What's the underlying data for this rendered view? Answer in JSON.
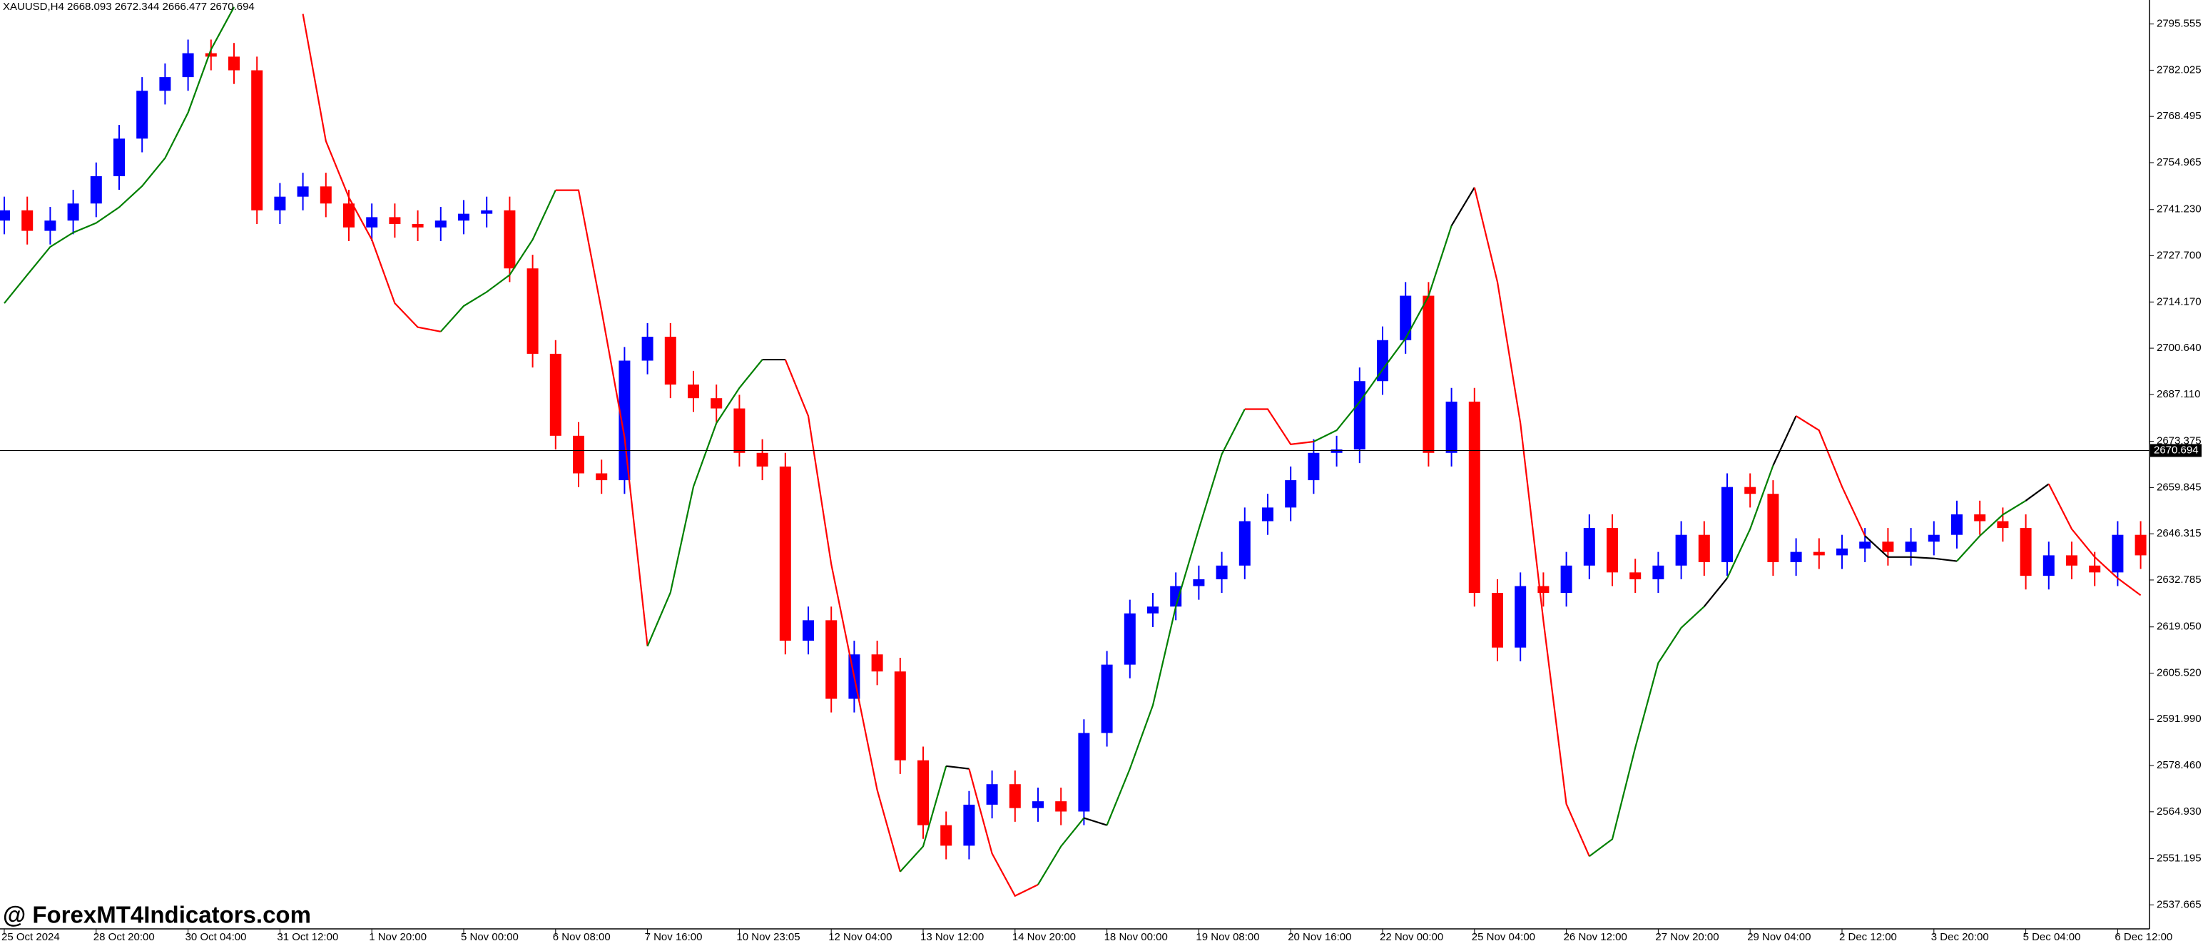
{
  "chart_data": {
    "type": "candlestick",
    "header": "XAUUSD,H4  2668.093 2672.344 2666.477 2670.694",
    "watermark": "@ ForexMT4Indicators.com",
    "up_color": "#0000ff",
    "down_color": "#ff0000",
    "categories": [
      "25 Oct 2024",
      null,
      null,
      null,
      "28 Oct 20:00",
      null,
      null,
      null,
      "30 Oct 04:00",
      null,
      null,
      null,
      "31 Oct 12:00",
      null,
      null,
      null,
      "1 Nov 20:00",
      null,
      null,
      null,
      "5 Nov 00:00",
      null,
      null,
      null,
      "6 Nov 08:00",
      null,
      null,
      null,
      "7 Nov 16:00",
      null,
      null,
      null,
      "10 Nov 23:05",
      null,
      null,
      null,
      "12 Nov 04:00",
      null,
      null,
      null,
      "13 Nov 12:00",
      null,
      null,
      null,
      "14 Nov 20:00",
      null,
      null,
      null,
      "18 Nov 00:00",
      null,
      null,
      null,
      "19 Nov 08:00",
      null,
      null,
      null,
      "20 Nov 16:00",
      null,
      null,
      null,
      "22 Nov 00:00",
      null,
      null,
      null,
      "25 Nov 04:00",
      null,
      null,
      null,
      "26 Nov 12:00",
      null,
      null,
      null,
      "27 Nov 20:00",
      null,
      null,
      null,
      "29 Nov 04:00",
      null,
      null,
      null,
      "2 Dec 12:00",
      null,
      null,
      null,
      "3 Dec 20:00",
      null,
      null,
      null,
      "5 Dec 04:00",
      null,
      null,
      null,
      "6 Dec 12:00",
      null
    ],
    "open": [
      2738,
      2741,
      2735,
      2738,
      2743,
      2751,
      2762,
      2776,
      2780,
      2787,
      2786,
      2782,
      2741,
      2745,
      2748,
      2743,
      2736,
      2739,
      2737,
      2736,
      2738,
      2740,
      2741,
      2724,
      2699,
      2675,
      2664,
      2662,
      2697,
      2704,
      2690,
      2686,
      2683,
      2670,
      2666,
      2615,
      2621,
      2598,
      2611,
      2606,
      2580,
      2561,
      2555,
      2567,
      2573,
      2566,
      2568,
      2565,
      2588,
      2608,
      2623,
      2625,
      2631,
      2633,
      2637,
      2650,
      2654,
      2662,
      2670,
      2671,
      2691,
      2703,
      2716,
      2670,
      2685,
      2629,
      2613,
      2631,
      2629,
      2637,
      2648,
      2635,
      2633,
      2637,
      2646,
      2638,
      2660,
      2658,
      2638,
      2641,
      2640,
      2642,
      2644,
      2641,
      2644,
      2646,
      2652,
      2650,
      2648,
      2634,
      2640,
      2637,
      2635,
      2646
    ],
    "high": [
      2745,
      2745,
      2742,
      2747,
      2755,
      2766,
      2780,
      2784,
      2791,
      2791,
      2790,
      2786,
      2749,
      2752,
      2752,
      2747,
      2743,
      2743,
      2741,
      2742,
      2744,
      2745,
      2745,
      2728,
      2703,
      2679,
      2668,
      2701,
      2708,
      2708,
      2694,
      2690,
      2687,
      2674,
      2670,
      2625,
      2625,
      2615,
      2615,
      2610,
      2584,
      2565,
      2571,
      2577,
      2577,
      2572,
      2572,
      2592,
      2612,
      2627,
      2629,
      2635,
      2637,
      2641,
      2654,
      2658,
      2666,
      2674,
      2675,
      2695,
      2707,
      2720,
      2720,
      2689,
      2689,
      2633,
      2635,
      2635,
      2641,
      2652,
      2652,
      2639,
      2641,
      2650,
      2650,
      2664,
      2664,
      2662,
      2645,
      2645,
      2646,
      2648,
      2648,
      2648,
      2650,
      2656,
      2656,
      2654,
      2652,
      2644,
      2644,
      2641,
      2650,
      2650
    ],
    "low": [
      2734,
      2731,
      2731,
      2734,
      2739,
      2747,
      2758,
      2772,
      2776,
      2782,
      2778,
      2737,
      2737,
      2741,
      2739,
      2732,
      2732,
      2733,
      2732,
      2732,
      2734,
      2736,
      2720,
      2695,
      2671,
      2660,
      2658,
      2658,
      2693,
      2686,
      2682,
      2679,
      2666,
      2662,
      2611,
      2611,
      2594,
      2594,
      2602,
      2576,
      2557,
      2551,
      2551,
      2563,
      2562,
      2562,
      2561,
      2561,
      2584,
      2604,
      2619,
      2621,
      2627,
      2629,
      2633,
      2646,
      2650,
      2658,
      2666,
      2667,
      2687,
      2699,
      2666,
      2666,
      2625,
      2609,
      2609,
      2625,
      2625,
      2633,
      2631,
      2629,
      2629,
      2633,
      2634,
      2634,
      2654,
      2634,
      2634,
      2636,
      2636,
      2638,
      2637,
      2637,
      2640,
      2642,
      2646,
      2644,
      2630,
      2630,
      2633,
      2631,
      2631,
      2636
    ],
    "close": [
      2741,
      2735,
      2738,
      2743,
      2751,
      2762,
      2776,
      2780,
      2787,
      2786,
      2782,
      2741,
      2745,
      2748,
      2743,
      2736,
      2739,
      2737,
      2736,
      2738,
      2740,
      2741,
      2724,
      2699,
      2675,
      2664,
      2662,
      2697,
      2704,
      2690,
      2686,
      2683,
      2670,
      2666,
      2615,
      2621,
      2598,
      2611,
      2606,
      2580,
      2561,
      2555,
      2567,
      2573,
      2566,
      2568,
      2565,
      2588,
      2608,
      2623,
      2625,
      2631,
      2633,
      2637,
      2650,
      2654,
      2662,
      2670,
      2671,
      2691,
      2703,
      2716,
      2670,
      2685,
      2629,
      2613,
      2631,
      2629,
      2637,
      2648,
      2635,
      2633,
      2637,
      2646,
      2638,
      2660,
      2658,
      2638,
      2641,
      2640,
      2642,
      2644,
      2641,
      2644,
      2646,
      2652,
      2650,
      2648,
      2634,
      2640,
      2637,
      2635,
      2646,
      2640
    ],
    "indicator": {
      "values": [
        2713.8,
        2722.1,
        2730.3,
        2734.5,
        2737.3,
        2741.9,
        2748.1,
        2756.3,
        2769.6,
        2788.1,
        2800.5,
        null,
        null,
        2798.5,
        2761.3,
        2744.8,
        2732.4,
        2713.8,
        2706.8,
        2705.5,
        2713,
        2717.1,
        2722.1,
        2732.4,
        2746.9,
        2746.9,
        2711.7,
        2674.6,
        2613.4,
        2629.1,
        2660.1,
        2678.7,
        2689,
        2697.3,
        2697.3,
        2680.8,
        2637.4,
        2604.4,
        2571.3,
        2547.4,
        2554.8,
        2578.3,
        2577.5,
        2552.7,
        2540.3,
        2543.6,
        2554.8,
        2563.1,
        2561,
        2577.5,
        2596.1,
        2625,
        2647.7,
        2669.6,
        2682.8,
        2682.8,
        2672.5,
        2673.3,
        2676.6,
        2684.9,
        2694.4,
        2703.5,
        2715.9,
        2736.5,
        2747.7,
        2720,
        2678.7,
        2620.9,
        2567.2,
        2551.9,
        2556.9,
        2583.7,
        2608.5,
        2618.8,
        2625,
        2633.3,
        2647.7,
        2666.3,
        2680.8,
        2676.6,
        2660.1,
        2645.7,
        2639.5,
        2639.5,
        2639.1,
        2638.3,
        2645.7,
        2651.9,
        2656,
        2660.9,
        2647.7,
        2639.5,
        2633.3,
        2628.3
      ],
      "colors": [
        "#008000",
        "#008000",
        "#008000",
        "#008000",
        "#008000",
        "#008000",
        "#008000",
        "#008000",
        "#008000",
        "#008000",
        "#008000",
        "#008000",
        "#008000",
        "#ff0000",
        "#ff0000",
        "#ff0000",
        "#ff0000",
        "#ff0000",
        "#ff0000",
        "#ff0000",
        "#008000",
        "#008000",
        "#008000",
        "#008000",
        "#008000",
        "#ff0000",
        "#ff0000",
        "#ff0000",
        "#ff0000",
        "#008000",
        "#008000",
        "#008000",
        "#008000",
        "#008000",
        "#000000",
        "#ff0000",
        "#ff0000",
        "#ff0000",
        "#ff0000",
        "#ff0000",
        "#008000",
        "#008000",
        "#000000",
        "#ff0000",
        "#ff0000",
        "#ff0000",
        "#008000",
        "#008000",
        "#000000",
        "#008000",
        "#008000",
        "#008000",
        "#008000",
        "#008000",
        "#008000",
        "#ff0000",
        "#ff0000",
        "#ff0000",
        "#008000",
        "#008000",
        "#008000",
        "#008000",
        "#008000",
        "#008000",
        "#000000",
        "#ff0000",
        "#ff0000",
        "#ff0000",
        "#ff0000",
        "#ff0000",
        "#008000",
        "#008000",
        "#008000",
        "#008000",
        "#008000",
        "#000000",
        "#008000",
        "#008000",
        "#000000",
        "#ff0000",
        "#ff0000",
        "#ff0000",
        "#000000",
        "#000000",
        "#000000",
        "#000000",
        "#008000",
        "#008000",
        "#008000",
        "#000000",
        "#ff0000",
        "#ff0000",
        "#ff0000",
        "#ff0000"
      ]
    },
    "current_price": 2670.694,
    "ylim": [
      2531.06,
      2802.58
    ],
    "yticks": [
      2795.555,
      {
        "value": 2782.025,
        "label": "2782.025"
      },
      2768.495,
      2754.965,
      {
        "value": 2741.23,
        "label": "2741.230"
      },
      {
        "value": 2727.7,
        "label": "2727.700"
      },
      {
        "value": 2714.17,
        "label": "2714.170"
      },
      {
        "value": 2700.64,
        "label": "2700.640"
      },
      {
        "value": 2687.11,
        "label": "2687.110"
      },
      2673.375,
      2659.845,
      2646.315,
      2632.785,
      {
        "value": 2619.05,
        "label": "2619.050"
      },
      {
        "value": 2605.52,
        "label": "2605.520"
      },
      {
        "value": 2591.99,
        "label": "2591.990"
      },
      {
        "value": 2578.46,
        "label": "2578.460"
      },
      {
        "value": 2564.93,
        "label": "2564.930"
      },
      2551.195,
      2537.665
    ]
  }
}
